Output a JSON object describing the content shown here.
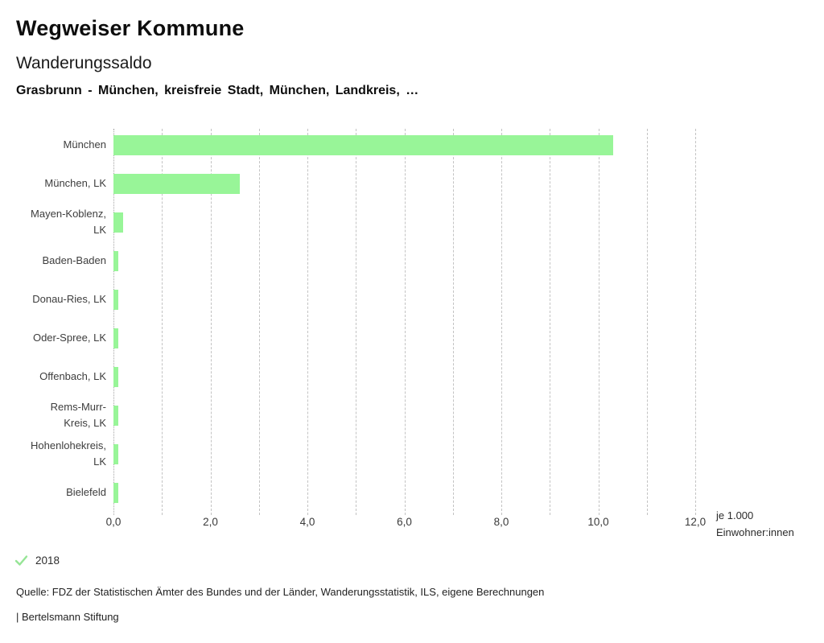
{
  "header": {
    "title": "Wegweiser Kommune",
    "subtitle": "Wanderungssaldo",
    "selection": "Grasbrunn - München, kreisfreie Stadt, München, Landkreis, …"
  },
  "chart_data": {
    "type": "bar",
    "orientation": "horizontal",
    "categories": [
      "München",
      "München, LK",
      "Mayen-Koblenz,\nLK",
      "Baden-Baden",
      "Donau-Ries, LK",
      "Oder-Spree, LK",
      "Offenbach, LK",
      "Rems-Murr-\nKreis, LK",
      "Hohenlohekreis,\nLK",
      "Bielefeld"
    ],
    "values": [
      10.3,
      2.6,
      0.2,
      0.1,
      0.1,
      0.1,
      0.1,
      0.1,
      0.1,
      0.1
    ],
    "xlim": [
      0,
      12
    ],
    "gridline_step": 1,
    "x_tick_values": [
      0,
      2,
      4,
      6,
      8,
      10,
      12
    ],
    "x_tick_labels": [
      "0,0",
      "2,0",
      "4,0",
      "6,0",
      "8,0",
      "10,0",
      "12,0"
    ],
    "unit_label_lines": [
      "je 1.000",
      "Einwohner:innen"
    ],
    "bar_color": "#98f598",
    "grid": true,
    "legend": [
      {
        "label": "2018",
        "checked": true
      }
    ],
    "legend_position": "bottom-left",
    "legend_check_color": "#96e596"
  },
  "footer": {
    "source": "Quelle: FDZ der Statistischen Ämter des Bundes und der Länder, Wanderungsstatistik, ILS, eigene Berechnungen",
    "brand": "| Bertelsmann Stiftung"
  }
}
